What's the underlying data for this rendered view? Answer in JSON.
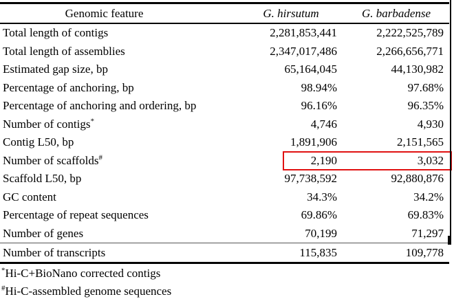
{
  "table": {
    "columns": [
      "Genomic feature",
      "G. hirsutum",
      "G. barbadense"
    ],
    "rows": [
      {
        "feature": "Total length of contigs",
        "sup": "",
        "hirsutum": "2,281,853,441",
        "barbadense": "2,222,525,789"
      },
      {
        "feature": "Total length of assemblies",
        "sup": "",
        "hirsutum": "2,347,017,486",
        "barbadense": "2,266,656,771"
      },
      {
        "feature": "Estimated gap size, bp",
        "sup": "",
        "hirsutum": "65,164,045",
        "barbadense": "44,130,982"
      },
      {
        "feature": "Percentage of anchoring, bp",
        "sup": "",
        "hirsutum": "98.94%",
        "barbadense": "97.68%"
      },
      {
        "feature": "Percentage of anchoring and ordering, bp",
        "sup": "",
        "hirsutum": "96.16%",
        "barbadense": "96.35%"
      },
      {
        "feature": "Number of contigs",
        "sup": "*",
        "hirsutum": "4,746",
        "barbadense": "4,930"
      },
      {
        "feature": "Contig L50, bp",
        "sup": "",
        "hirsutum": "1,891,906",
        "barbadense": "2,151,565"
      },
      {
        "feature": "Number of scaffolds",
        "sup": "#",
        "hirsutum": "2,190",
        "barbadense": "3,032",
        "highlighted": true
      },
      {
        "feature": "Scaffold L50, bp",
        "sup": "",
        "hirsutum": "97,738,592",
        "barbadense": "92,880,876"
      },
      {
        "feature": "GC content",
        "sup": "",
        "hirsutum": "34.3%",
        "barbadense": "34.2%"
      },
      {
        "feature": "Percentage of repeat sequences",
        "sup": "",
        "hirsutum": "69.86%",
        "barbadense": "69.83%"
      },
      {
        "feature": "Number of genes",
        "sup": "",
        "hirsutum": "70,199",
        "barbadense": "71,297"
      },
      {
        "feature": "Number of transcripts",
        "sup": "",
        "hirsutum": "115,835",
        "barbadense": "109,778",
        "separator_above": true
      }
    ],
    "footnotes": [
      {
        "marker": "*",
        "text": "Hi-C+BioNano corrected contigs"
      },
      {
        "marker": "#",
        "text": "Hi-C-assembled genome sequences"
      }
    ],
    "highlight_color": "#e01010"
  }
}
